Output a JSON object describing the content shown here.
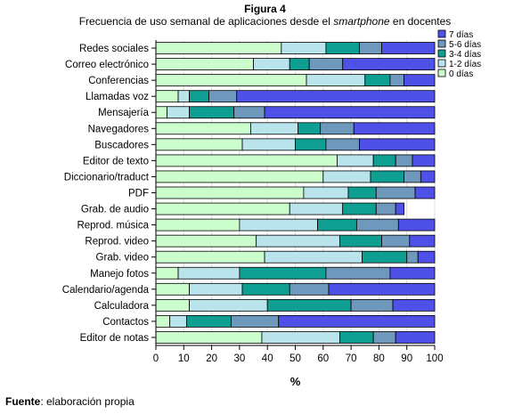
{
  "figure": {
    "label": "Figura 4",
    "title_before": "Frecuencia de uso semanal de aplicaciones desde el ",
    "title_italic": "smartphone",
    "title_after": " en docentes",
    "source_bold": "Fuente",
    "source_rest": ": elaboración propia"
  },
  "colors": {
    "7 días": "#4f50e8",
    "5-6 días": "#6f98bd",
    "3-4 días": "#0e9f92",
    "1-2 días": "#b9e4ec",
    "0 días": "#ccfdcc"
  },
  "chart_data": {
    "type": "bar",
    "orientation": "horizontal",
    "stacked": true,
    "xlabel": "%",
    "ylabel": "",
    "xlim": [
      0,
      100
    ],
    "xticks": [
      "0",
      "10",
      "20",
      "30",
      "40",
      "50",
      "60",
      "70",
      "80",
      "90",
      "100"
    ],
    "grid": "vertical",
    "legend": {
      "position": "top-right",
      "entries": [
        "7 días",
        "5-6 días",
        "3-4 días",
        "1-2 días",
        "0 días"
      ]
    },
    "categories": [
      "Redes sociales",
      "Correo electrónico",
      "Conferencias",
      "Llamadas voz",
      "Mensajería",
      "Navegadores",
      "Buscadores",
      "Editor de texto",
      "Diccionario/traduct",
      "PDF",
      "Grab. de audio",
      "Reprod. música",
      "Reprod. video",
      "Grab. video",
      "Manejo fotos",
      "Calendario/agenda",
      "Calculadora",
      "Contactos",
      "Editor de notas"
    ],
    "series": [
      {
        "name": "0 días",
        "values": [
          45,
          35,
          54,
          8,
          4,
          34,
          31,
          65,
          60,
          53,
          48,
          30,
          36,
          39,
          8,
          12,
          12,
          5,
          38
        ]
      },
      {
        "name": "1-2 días",
        "values": [
          16,
          13,
          21,
          4,
          8,
          17,
          19,
          13,
          17,
          16,
          19,
          28,
          30,
          35,
          22,
          19,
          28,
          6,
          28
        ]
      },
      {
        "name": "3-4 días",
        "values": [
          12,
          7,
          9,
          7,
          16,
          8,
          11,
          8,
          12,
          10,
          12,
          14,
          15,
          16,
          31,
          17,
          30,
          16,
          12
        ]
      },
      {
        "name": "5-6 días",
        "values": [
          8,
          12,
          5,
          10,
          11,
          12,
          12,
          6,
          6,
          14,
          7,
          15,
          10,
          4,
          23,
          14,
          15,
          17,
          8
        ]
      },
      {
        "name": "7 días",
        "values": [
          19,
          33,
          11,
          71,
          61,
          29,
          27,
          8,
          5,
          7,
          3,
          13,
          9,
          6,
          16,
          38,
          15,
          56,
          14
        ]
      }
    ]
  }
}
